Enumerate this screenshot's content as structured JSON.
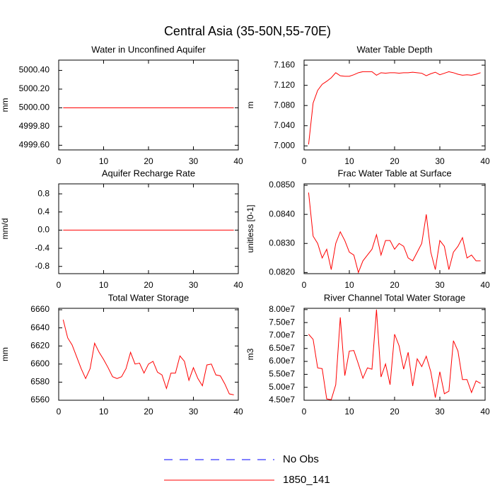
{
  "title": "Central Asia (35-50N,55-70E)",
  "legend": [
    {
      "name": "No Obs",
      "color": "#0000ff",
      "dash": true
    },
    {
      "name": "1850_141",
      "color": "#ff0000",
      "dash": false
    }
  ],
  "chart_data": [
    {
      "type": "line",
      "title": "Water in Unconfined Aquifer",
      "ylabel": "mm",
      "color": "#ff0000",
      "x": [
        1,
        2,
        3,
        4,
        5,
        6,
        7,
        8,
        9,
        10,
        11,
        12,
        13,
        14,
        15,
        16,
        17,
        18,
        19,
        20,
        21,
        22,
        23,
        24,
        25,
        26,
        27,
        28,
        29,
        30,
        31,
        32,
        33,
        34,
        35,
        36,
        37,
        38,
        39
      ],
      "values": [
        5000,
        5000,
        5000,
        5000,
        5000,
        5000,
        5000,
        5000,
        5000,
        5000,
        5000,
        5000,
        5000,
        5000,
        5000,
        5000,
        5000,
        5000,
        5000,
        5000,
        5000,
        5000,
        5000,
        5000,
        5000,
        5000,
        5000,
        5000,
        5000,
        5000,
        5000,
        5000,
        5000,
        5000,
        5000,
        5000,
        5000,
        5000,
        5000
      ],
      "xlim": [
        0,
        40
      ],
      "xticks": [
        0,
        10,
        20,
        30,
        40
      ],
      "ylim": [
        4999.55,
        5000.51
      ],
      "yticks": [
        {
          "value": 4999.6,
          "label": "4999.60"
        },
        {
          "value": 4999.8,
          "label": "4999.80"
        },
        {
          "value": 5000,
          "label": "5000.00"
        },
        {
          "value": 5000.2,
          "label": "5000.20"
        },
        {
          "value": 5000.4,
          "label": "5000.40"
        }
      ]
    },
    {
      "type": "line",
      "title": "Water Table Depth",
      "ylabel": "m",
      "color": "#ff0000",
      "x": [
        1,
        2,
        3,
        4,
        5,
        6,
        7,
        8,
        9,
        10,
        11,
        12,
        13,
        14,
        15,
        16,
        17,
        18,
        19,
        20,
        21,
        22,
        23,
        24,
        25,
        26,
        27,
        28,
        29,
        30,
        31,
        32,
        33,
        34,
        35,
        36,
        37,
        38,
        39
      ],
      "values": [
        7.003,
        7.085,
        7.11,
        7.122,
        7.128,
        7.135,
        7.145,
        7.139,
        7.138,
        7.138,
        7.141,
        7.145,
        7.147,
        7.147,
        7.147,
        7.14,
        7.145,
        7.144,
        7.145,
        7.145,
        7.144,
        7.145,
        7.145,
        7.146,
        7.145,
        7.144,
        7.139,
        7.143,
        7.146,
        7.141,
        7.144,
        7.147,
        7.145,
        7.142,
        7.14,
        7.141,
        7.14,
        7.142,
        7.145
      ],
      "xlim": [
        0,
        40
      ],
      "xticks": [
        0,
        10,
        20,
        30,
        40
      ],
      "ylim": [
        6.992,
        7.17
      ],
      "yticks": [
        {
          "value": 7.0,
          "label": "7.000"
        },
        {
          "value": 7.04,
          "label": "7.040"
        },
        {
          "value": 7.08,
          "label": "7.080"
        },
        {
          "value": 7.12,
          "label": "7.120"
        },
        {
          "value": 7.16,
          "label": "7.160"
        }
      ]
    },
    {
      "type": "line",
      "title": "Aquifer Recharge Rate",
      "ylabel": "mm/d",
      "color": "#ff0000",
      "x": [
        1,
        2,
        3,
        4,
        5,
        6,
        7,
        8,
        9,
        10,
        11,
        12,
        13,
        14,
        15,
        16,
        17,
        18,
        19,
        20,
        21,
        22,
        23,
        24,
        25,
        26,
        27,
        28,
        29,
        30,
        31,
        32,
        33,
        34,
        35,
        36,
        37,
        38,
        39
      ],
      "values": [
        0,
        0,
        0,
        0,
        0,
        0,
        0,
        0,
        0,
        0,
        0,
        0,
        0,
        0,
        0,
        0,
        0,
        0,
        0,
        0,
        0,
        0,
        0,
        0,
        0,
        0,
        0,
        0,
        0,
        0,
        0,
        0,
        0,
        0,
        0,
        0,
        0,
        0,
        0
      ],
      "xlim": [
        0,
        40
      ],
      "xticks": [
        0,
        10,
        20,
        30,
        40
      ],
      "ylim": [
        -0.96,
        1.02
      ],
      "yticks": [
        -0.8,
        -0.4,
        {
          "value": 0,
          "label": "0.0"
        },
        0.4,
        0.8
      ]
    },
    {
      "type": "line",
      "title": "Frac Water Table at Surface",
      "ylabel": "unitless [0-1]",
      "color": "#ff0000",
      "x": [
        1,
        2,
        3,
        4,
        5,
        6,
        7,
        8,
        9,
        10,
        11,
        12,
        13,
        14,
        15,
        16,
        17,
        18,
        19,
        20,
        21,
        22,
        23,
        24,
        25,
        26,
        27,
        28,
        29,
        30,
        31,
        32,
        33,
        34,
        35,
        36,
        37,
        38,
        39
      ],
      "values": [
        0.08475,
        0.08325,
        0.083,
        0.0825,
        0.0828,
        0.0821,
        0.083,
        0.0834,
        0.0831,
        0.0827,
        0.0826,
        0.082,
        0.0824,
        0.0826,
        0.0828,
        0.0833,
        0.0826,
        0.0831,
        0.0831,
        0.0828,
        0.083,
        0.0829,
        0.0825,
        0.0824,
        0.0827,
        0.083,
        0.084,
        0.0827,
        0.0821,
        0.0831,
        0.0829,
        0.0821,
        0.0827,
        0.0829,
        0.0832,
        0.0825,
        0.0826,
        0.0824,
        0.0824
      ],
      "xlim": [
        0,
        40
      ],
      "xticks": [
        0,
        10,
        20,
        30,
        40
      ],
      "ylim": [
        0.08196,
        0.08505
      ],
      "yticks": [
        {
          "value": 0.082,
          "label": "0.0820"
        },
        {
          "value": 0.083,
          "label": "0.0830"
        },
        {
          "value": 0.084,
          "label": "0.0840"
        },
        {
          "value": 0.085,
          "label": "0.0850"
        }
      ]
    },
    {
      "type": "line",
      "title": "Total Water Storage",
      "ylabel": "mm",
      "color": "#ff0000",
      "x": [
        1,
        2,
        3,
        4,
        5,
        6,
        7,
        8,
        9,
        10,
        11,
        12,
        13,
        14,
        15,
        16,
        17,
        18,
        19,
        20,
        21,
        22,
        23,
        24,
        25,
        26,
        27,
        28,
        29,
        30,
        31,
        32,
        33,
        34,
        35,
        36,
        37,
        38,
        39
      ],
      "values": [
        6649,
        6629,
        6621,
        6608,
        6595,
        6584,
        6595,
        6623,
        6613,
        6605,
        6596,
        6586,
        6584,
        6586,
        6595,
        6613,
        6600,
        6601,
        6590,
        6600,
        6603,
        6591,
        6588,
        6573,
        6590,
        6590,
        6609,
        6603,
        6582,
        6596,
        6584,
        6576,
        6599,
        6600,
        6588,
        6587,
        6578,
        6567,
        6566
      ],
      "xlim": [
        0,
        40
      ],
      "xticks": [
        0,
        10,
        20,
        30,
        40
      ],
      "ylim": [
        6560,
        6661.6
      ],
      "yticks": [
        6560,
        6580,
        6600,
        6620,
        6640,
        6660
      ]
    },
    {
      "type": "line",
      "title": "River Channel Total Water Storage",
      "ylabel": "m3",
      "color": "#ff0000",
      "x": [
        1,
        2,
        3,
        4,
        5,
        6,
        7,
        8,
        9,
        10,
        11,
        12,
        13,
        14,
        15,
        16,
        17,
        18,
        19,
        20,
        21,
        22,
        23,
        24,
        25,
        26,
        27,
        28,
        29,
        30,
        31,
        32,
        33,
        34,
        35,
        36,
        37,
        38,
        39
      ],
      "values": [
        70500000,
        68500000,
        57500000,
        57200000,
        45500000,
        45200000,
        51000000,
        77000000,
        54500000,
        64000000,
        64200000,
        59000000,
        53500000,
        57500000,
        57000000,
        80000000,
        54000000,
        59000000,
        51000000,
        70500000,
        66000000,
        57000000,
        63500000,
        50500000,
        61000000,
        58000000,
        62000000,
        56000000,
        46000000,
        56000000,
        47500000,
        48500000,
        68000000,
        64000000,
        53000000,
        53000000,
        48000000,
        52500000,
        51500000
      ],
      "xlim": [
        0,
        40
      ],
      "xticks": [
        0,
        10,
        20,
        30,
        40
      ],
      "ylim": [
        45000000,
        80500000
      ],
      "yticks": [
        {
          "value": 45000000,
          "label": "4.50e7"
        },
        {
          "value": 50000000,
          "label": "5.00e7"
        },
        {
          "value": 55000000,
          "label": "5.50e7"
        },
        {
          "value": 60000000,
          "label": "6.00e7"
        },
        {
          "value": 65000000,
          "label": "6.50e7"
        },
        {
          "value": 70000000,
          "label": "7.00e7"
        },
        {
          "value": 75000000,
          "label": "7.50e7"
        },
        {
          "value": 80000000,
          "label": "8.00e7"
        }
      ]
    }
  ]
}
